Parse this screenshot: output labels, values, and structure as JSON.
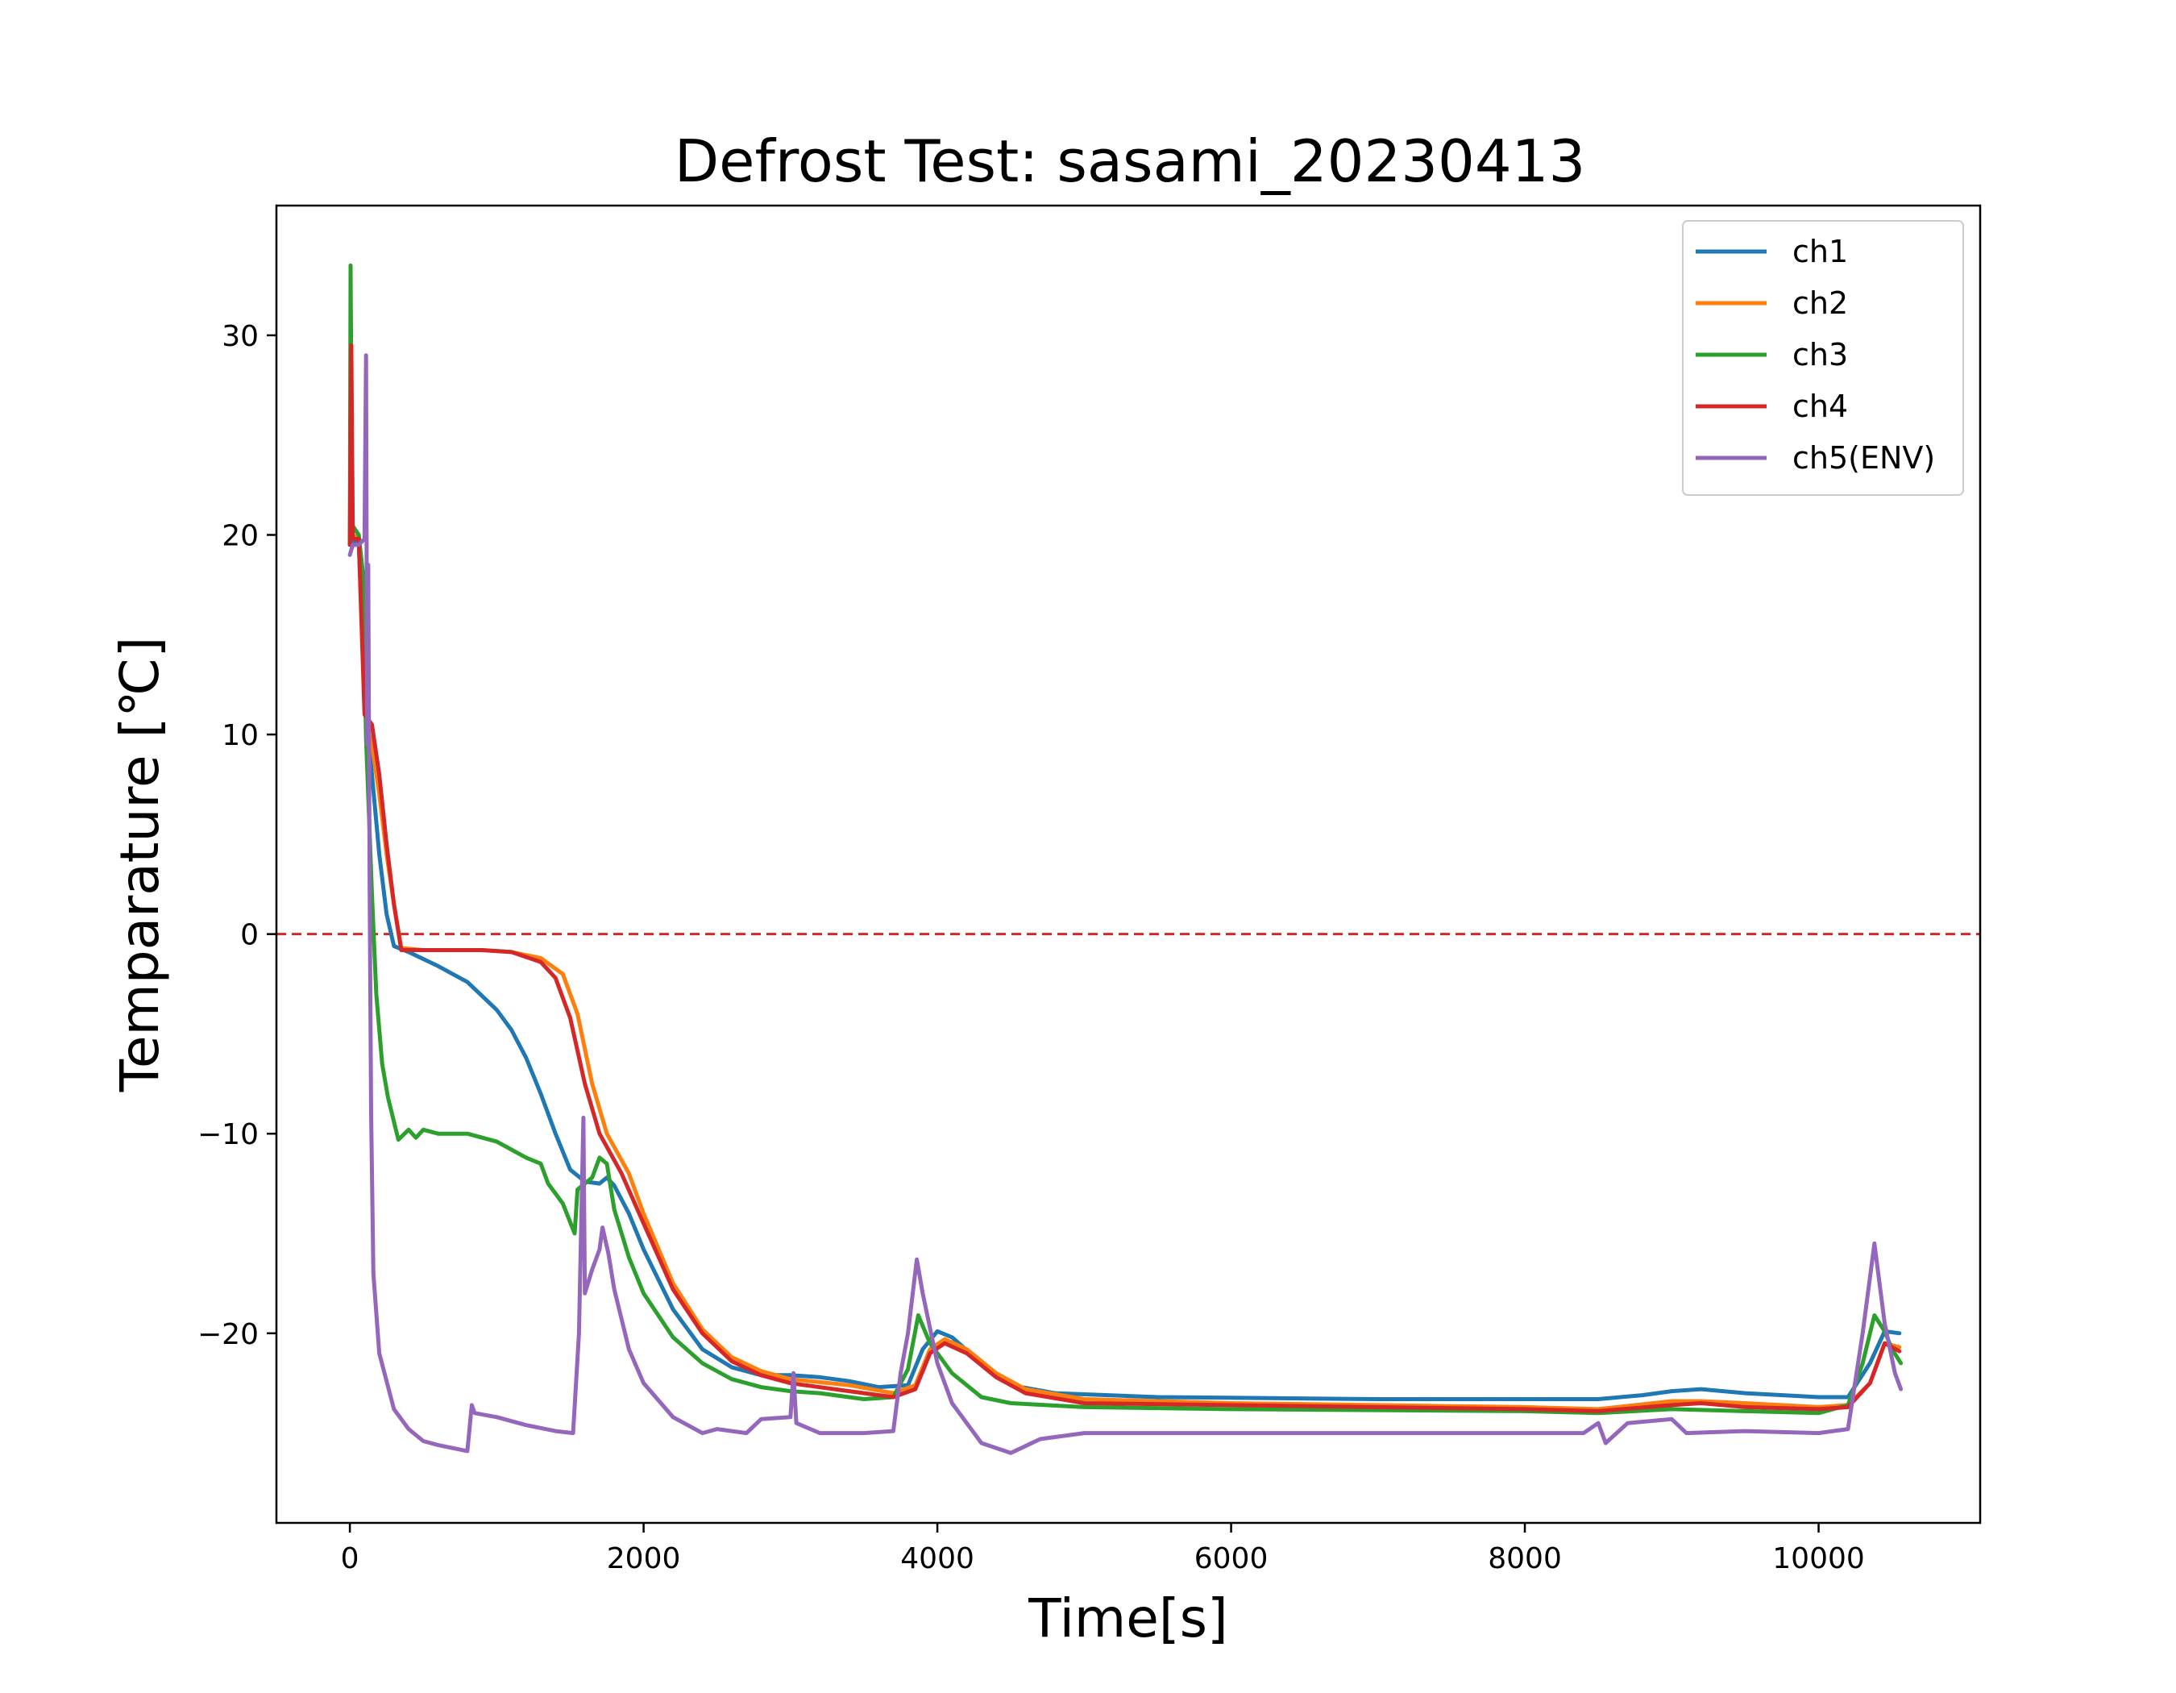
{
  "chart_data": {
    "type": "line",
    "title": "Defrost Test: sasami_20230413",
    "xlabel": "Time[s]",
    "ylabel": "Temparature [℃]",
    "xlim": [
      -500,
      11100
    ],
    "ylim": [
      -29.5,
      36.5
    ],
    "xticks": [
      0,
      2000,
      4000,
      6000,
      8000,
      10000
    ],
    "xtick_labels": [
      "0",
      "2000",
      "4000",
      "6000",
      "8000",
      "10000"
    ],
    "yticks": [
      -20,
      -10,
      0,
      10,
      20,
      30
    ],
    "ytick_labels": [
      "−20",
      "−10",
      "0",
      "10",
      "20",
      "30"
    ],
    "grid": false,
    "legend_position": "top-right",
    "reference_line": {
      "y": 0,
      "color": "#d62728",
      "style": "dashed"
    },
    "series": [
      {
        "name": "ch1",
        "color": "#1f77b4",
        "points": [
          [
            0,
            19.5
          ],
          [
            60,
            19.8
          ],
          [
            100,
            12
          ],
          [
            150,
            8
          ],
          [
            200,
            4
          ],
          [
            250,
            1
          ],
          [
            300,
            -0.6
          ],
          [
            400,
            -0.9
          ],
          [
            600,
            -1.6
          ],
          [
            800,
            -2.4
          ],
          [
            1000,
            -3.8
          ],
          [
            1100,
            -4.8
          ],
          [
            1200,
            -6.2
          ],
          [
            1300,
            -8
          ],
          [
            1400,
            -10
          ],
          [
            1500,
            -11.8
          ],
          [
            1600,
            -12.4
          ],
          [
            1700,
            -12.5
          ],
          [
            1750,
            -12.2
          ],
          [
            1800,
            -12.6
          ],
          [
            1900,
            -14
          ],
          [
            2000,
            -15.8
          ],
          [
            2200,
            -18.8
          ],
          [
            2400,
            -20.8
          ],
          [
            2600,
            -21.7
          ],
          [
            2800,
            -22.1
          ],
          [
            3000,
            -22.1
          ],
          [
            3200,
            -22.2
          ],
          [
            3400,
            -22.4
          ],
          [
            3600,
            -22.7
          ],
          [
            3800,
            -22.6
          ],
          [
            3900,
            -20.8
          ],
          [
            4000,
            -19.9
          ],
          [
            4100,
            -20.2
          ],
          [
            4300,
            -21.5
          ],
          [
            4500,
            -22.6
          ],
          [
            4800,
            -23
          ],
          [
            5500,
            -23.2
          ],
          [
            7000,
            -23.3
          ],
          [
            8000,
            -23.3
          ],
          [
            8500,
            -23.3
          ],
          [
            8800,
            -23.1
          ],
          [
            9000,
            -22.9
          ],
          [
            9200,
            -22.8
          ],
          [
            9500,
            -23
          ],
          [
            10000,
            -23.2
          ],
          [
            10200,
            -23.2
          ],
          [
            10350,
            -21.5
          ],
          [
            10450,
            -19.9
          ],
          [
            10550,
            -20
          ]
        ]
      },
      {
        "name": "ch2",
        "color": "#ff7f0e",
        "points": [
          [
            0,
            19.8
          ],
          [
            60,
            20
          ],
          [
            110,
            10.5
          ],
          [
            150,
            9.5
          ],
          [
            200,
            7
          ],
          [
            250,
            4
          ],
          [
            300,
            1.5
          ],
          [
            350,
            -0.7
          ],
          [
            500,
            -0.8
          ],
          [
            700,
            -0.8
          ],
          [
            900,
            -0.8
          ],
          [
            1100,
            -0.9
          ],
          [
            1300,
            -1.2
          ],
          [
            1450,
            -2
          ],
          [
            1550,
            -4
          ],
          [
            1650,
            -7.5
          ],
          [
            1750,
            -10
          ],
          [
            1900,
            -12
          ],
          [
            2000,
            -14
          ],
          [
            2200,
            -17.5
          ],
          [
            2400,
            -19.8
          ],
          [
            2600,
            -21.2
          ],
          [
            2800,
            -21.9
          ],
          [
            3000,
            -22.3
          ],
          [
            3400,
            -22.6
          ],
          [
            3700,
            -23
          ],
          [
            3850,
            -22.6
          ],
          [
            3950,
            -20.8
          ],
          [
            4050,
            -20.3
          ],
          [
            4200,
            -20.8
          ],
          [
            4400,
            -22
          ],
          [
            4600,
            -22.8
          ],
          [
            5000,
            -23.3
          ],
          [
            6000,
            -23.5
          ],
          [
            8000,
            -23.7
          ],
          [
            8500,
            -23.8
          ],
          [
            9000,
            -23.4
          ],
          [
            9200,
            -23.4
          ],
          [
            9500,
            -23.5
          ],
          [
            10000,
            -23.7
          ],
          [
            10200,
            -23.6
          ],
          [
            10350,
            -22.5
          ],
          [
            10450,
            -20.5
          ],
          [
            10550,
            -20.7
          ]
        ]
      },
      {
        "name": "ch3",
        "color": "#2ca02c",
        "points": [
          [
            0,
            19.5
          ],
          [
            5,
            33.5
          ],
          [
            15,
            20.5
          ],
          [
            60,
            20
          ],
          [
            90,
            18
          ],
          [
            110,
            9.8
          ],
          [
            130,
            6
          ],
          [
            150,
            2
          ],
          [
            180,
            -3
          ],
          [
            220,
            -6.5
          ],
          [
            260,
            -8.2
          ],
          [
            300,
            -9.4
          ],
          [
            330,
            -10.3
          ],
          [
            400,
            -9.8
          ],
          [
            450,
            -10.2
          ],
          [
            500,
            -9.8
          ],
          [
            600,
            -10
          ],
          [
            800,
            -10
          ],
          [
            1000,
            -10.4
          ],
          [
            1200,
            -11.2
          ],
          [
            1300,
            -11.5
          ],
          [
            1350,
            -12.5
          ],
          [
            1450,
            -13.5
          ],
          [
            1530,
            -15
          ],
          [
            1550,
            -12.8
          ],
          [
            1650,
            -12.2
          ],
          [
            1700,
            -11.2
          ],
          [
            1750,
            -11.5
          ],
          [
            1800,
            -13.8
          ],
          [
            1900,
            -16.2
          ],
          [
            2000,
            -18
          ],
          [
            2200,
            -20.2
          ],
          [
            2400,
            -21.5
          ],
          [
            2600,
            -22.3
          ],
          [
            2800,
            -22.7
          ],
          [
            3000,
            -22.9
          ],
          [
            3200,
            -23
          ],
          [
            3500,
            -23.3
          ],
          [
            3700,
            -23.2
          ],
          [
            3800,
            -21.8
          ],
          [
            3870,
            -19.1
          ],
          [
            3950,
            -20.5
          ],
          [
            4100,
            -22
          ],
          [
            4300,
            -23.2
          ],
          [
            4500,
            -23.5
          ],
          [
            5000,
            -23.7
          ],
          [
            6000,
            -23.8
          ],
          [
            8000,
            -23.9
          ],
          [
            8500,
            -24
          ],
          [
            9000,
            -23.8
          ],
          [
            9500,
            -23.9
          ],
          [
            10000,
            -24
          ],
          [
            10200,
            -23.6
          ],
          [
            10300,
            -21.5
          ],
          [
            10380,
            -19.1
          ],
          [
            10450,
            -19.9
          ],
          [
            10500,
            -20.8
          ],
          [
            10560,
            -21.5
          ]
        ]
      },
      {
        "name": "ch4",
        "color": "#d62728",
        "points": [
          [
            0,
            19.5
          ],
          [
            10,
            29.5
          ],
          [
            20,
            19.8
          ],
          [
            60,
            19.8
          ],
          [
            100,
            11
          ],
          [
            150,
            10.5
          ],
          [
            200,
            8
          ],
          [
            250,
            4.5
          ],
          [
            300,
            1.5
          ],
          [
            350,
            -0.8
          ],
          [
            500,
            -0.8
          ],
          [
            700,
            -0.8
          ],
          [
            900,
            -0.8
          ],
          [
            1100,
            -0.9
          ],
          [
            1300,
            -1.4
          ],
          [
            1400,
            -2.2
          ],
          [
            1500,
            -4.2
          ],
          [
            1600,
            -7.5
          ],
          [
            1700,
            -10
          ],
          [
            1850,
            -12
          ],
          [
            2000,
            -14.5
          ],
          [
            2200,
            -17.8
          ],
          [
            2400,
            -20
          ],
          [
            2600,
            -21.4
          ],
          [
            2800,
            -22.1
          ],
          [
            3000,
            -22.5
          ],
          [
            3400,
            -22.9
          ],
          [
            3700,
            -23.2
          ],
          [
            3850,
            -22.8
          ],
          [
            3950,
            -21
          ],
          [
            4050,
            -20.5
          ],
          [
            4200,
            -21
          ],
          [
            4400,
            -22.2
          ],
          [
            4600,
            -23
          ],
          [
            5000,
            -23.5
          ],
          [
            6000,
            -23.6
          ],
          [
            8000,
            -23.8
          ],
          [
            8500,
            -23.9
          ],
          [
            9000,
            -23.6
          ],
          [
            9200,
            -23.5
          ],
          [
            9500,
            -23.7
          ],
          [
            10000,
            -23.8
          ],
          [
            10200,
            -23.7
          ],
          [
            10350,
            -22.5
          ],
          [
            10450,
            -20.5
          ],
          [
            10550,
            -20.9
          ]
        ]
      },
      {
        "name": "ch5(ENV)",
        "color": "#9467bd",
        "points": [
          [
            0,
            19
          ],
          [
            20,
            19.5
          ],
          [
            60,
            19.5
          ],
          [
            100,
            19.8
          ],
          [
            110,
            29
          ],
          [
            118,
            9.5
          ],
          [
            125,
            18.5
          ],
          [
            135,
            2
          ],
          [
            145,
            -9
          ],
          [
            160,
            -17
          ],
          [
            200,
            -21
          ],
          [
            300,
            -23.8
          ],
          [
            400,
            -24.8
          ],
          [
            500,
            -25.4
          ],
          [
            600,
            -25.6
          ],
          [
            800,
            -25.9
          ],
          [
            830,
            -23.6
          ],
          [
            850,
            -24
          ],
          [
            1000,
            -24.2
          ],
          [
            1200,
            -24.6
          ],
          [
            1400,
            -24.9
          ],
          [
            1520,
            -25
          ],
          [
            1560,
            -20
          ],
          [
            1590,
            -9.2
          ],
          [
            1600,
            -18
          ],
          [
            1650,
            -16.8
          ],
          [
            1700,
            -15.8
          ],
          [
            1720,
            -14.7
          ],
          [
            1760,
            -16
          ],
          [
            1800,
            -17.8
          ],
          [
            1900,
            -20.8
          ],
          [
            2000,
            -22.5
          ],
          [
            2200,
            -24.2
          ],
          [
            2400,
            -25
          ],
          [
            2500,
            -24.8
          ],
          [
            2700,
            -25
          ],
          [
            2800,
            -24.3
          ],
          [
            3000,
            -24.2
          ],
          [
            3020,
            -22
          ],
          [
            3040,
            -24.5
          ],
          [
            3200,
            -25
          ],
          [
            3500,
            -25
          ],
          [
            3700,
            -24.9
          ],
          [
            3750,
            -22
          ],
          [
            3800,
            -20
          ],
          [
            3860,
            -16.3
          ],
          [
            3900,
            -18
          ],
          [
            4000,
            -21.5
          ],
          [
            4100,
            -23.5
          ],
          [
            4300,
            -25.5
          ],
          [
            4500,
            -26
          ],
          [
            4700,
            -25.3
          ],
          [
            5000,
            -25
          ],
          [
            6000,
            -25
          ],
          [
            7000,
            -25
          ],
          [
            8000,
            -25
          ],
          [
            8400,
            -25
          ],
          [
            8500,
            -24.5
          ],
          [
            8550,
            -25.5
          ],
          [
            8700,
            -24.5
          ],
          [
            9000,
            -24.3
          ],
          [
            9100,
            -25
          ],
          [
            9500,
            -24.9
          ],
          [
            10000,
            -25
          ],
          [
            10200,
            -24.8
          ],
          [
            10300,
            -20
          ],
          [
            10380,
            -15.5
          ],
          [
            10450,
            -19.5
          ],
          [
            10520,
            -22
          ],
          [
            10560,
            -22.8
          ]
        ]
      }
    ]
  }
}
